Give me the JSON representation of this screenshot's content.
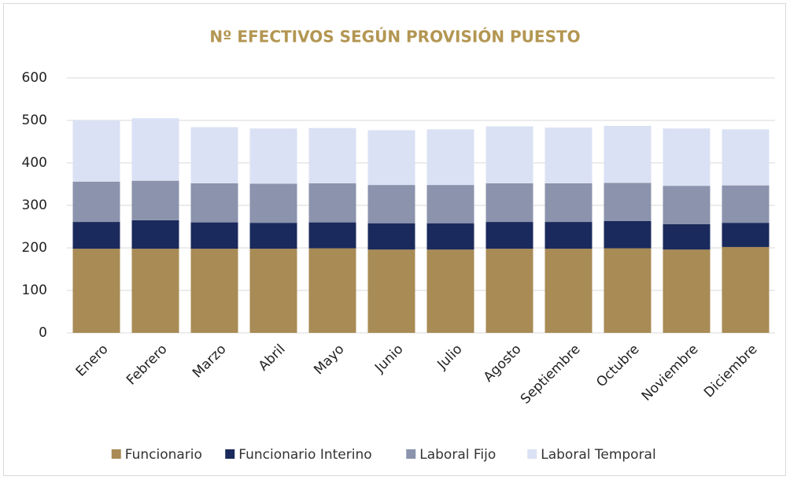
{
  "chart_data": {
    "type": "stacked_bar",
    "title": "Nº EFECTIVOS SEGÚN PROVISIÓN PUESTO",
    "categories": [
      "Enero",
      "Febrero",
      "Marzo",
      "Abril",
      "Mayo",
      "Junio",
      "Julio",
      "Agosto",
      "Septiembre",
      "Octubre",
      "Noviembre",
      "Diciembre"
    ],
    "series": [
      {
        "name": "Funcionario",
        "color": "#a88b55",
        "values": [
          198,
          198,
          198,
          198,
          199,
          196,
          196,
          198,
          198,
          199,
          196,
          202
        ]
      },
      {
        "name": "Funcionario Interino",
        "color": "#1b2a5c",
        "values": [
          63,
          67,
          62,
          61,
          61,
          62,
          62,
          63,
          63,
          64,
          60,
          57
        ]
      },
      {
        "name": "Laboral Fijo",
        "color": "#8b93ad",
        "values": [
          95,
          93,
          92,
          92,
          92,
          90,
          90,
          91,
          91,
          90,
          90,
          88
        ]
      },
      {
        "name": "Laboral Temporal",
        "color": "#dbe1f4",
        "values": [
          144,
          147,
          132,
          130,
          130,
          129,
          131,
          134,
          131,
          134,
          135,
          132
        ]
      }
    ],
    "ylim": [
      0,
      600
    ],
    "yticks": [
      0,
      100,
      200,
      300,
      400,
      500,
      600
    ],
    "grid": true,
    "legend": "bottom"
  }
}
